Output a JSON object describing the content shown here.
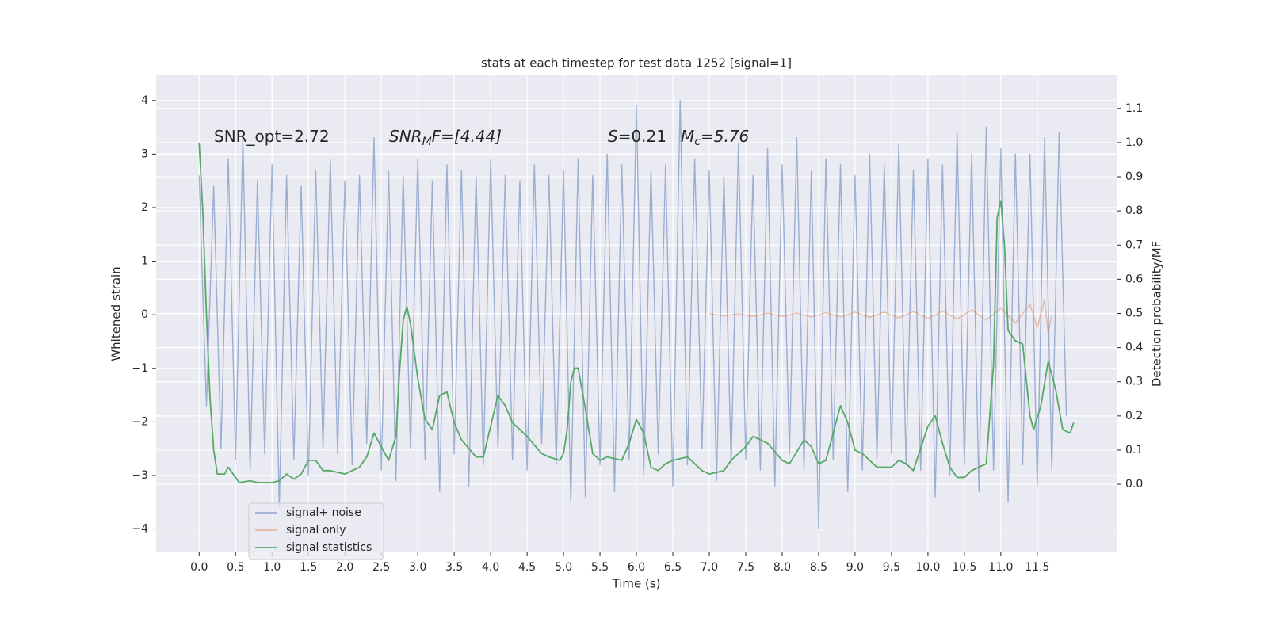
{
  "chart_data": {
    "type": "line",
    "title": "stats at each timestep for test data 1252 [signal=1]",
    "xlabel": "Time (s)",
    "ylabel": "Whitened strain",
    "y2label": "Detection probability/MF",
    "annotations": [
      {
        "base": "SNR_opt=2.72"
      },
      {
        "base": "SNR",
        "sub": "M",
        "rest": "F=[4.44]"
      },
      {
        "base": "S",
        "rest": "=0.21"
      },
      {
        "base": "M",
        "sub": "c",
        "rest": "=5.76"
      }
    ],
    "xlim": [
      -0.59,
      12.6
    ],
    "ylim": [
      -4.42,
      4.47
    ],
    "y2lim": [
      -0.197,
      1.197
    ],
    "xticks": [
      {
        "value": 0,
        "label": "0.0"
      },
      0.5,
      {
        "value": 1,
        "label": "1.0"
      },
      1.5,
      {
        "value": 2,
        "label": "2.0"
      },
      2.5,
      {
        "value": 3,
        "label": "3.0"
      },
      3.5,
      {
        "value": 4,
        "label": "4.0"
      },
      4.5,
      {
        "value": 5,
        "label": "5.0"
      },
      5.5,
      {
        "value": 6,
        "label": "6.0"
      },
      6.5,
      {
        "value": 7,
        "label": "7.0"
      },
      7.5,
      {
        "value": 8,
        "label": "8.0"
      },
      8.5,
      {
        "value": 9,
        "label": "9.0"
      },
      9.5,
      {
        "value": 10,
        "label": "10.0"
      },
      10.5,
      {
        "value": 11,
        "label": "11.0"
      },
      11.5
    ],
    "yticks": [
      {
        "value": -4,
        "label": "−4"
      },
      {
        "value": -3,
        "label": "−3"
      },
      {
        "value": -2,
        "label": "−2"
      },
      {
        "value": -1,
        "label": "−1"
      },
      0,
      1,
      2,
      3,
      4
    ],
    "y2ticks": [
      {
        "value": 0,
        "label": "0.0"
      },
      0.1,
      0.2,
      0.3,
      0.4,
      0.5,
      0.6,
      0.7,
      0.8,
      0.9,
      {
        "value": 1,
        "label": "1.0"
      },
      1.1
    ],
    "grid": true,
    "legend": "lower left",
    "series": [
      {
        "name": "signal+ noise",
        "color": "#4c72b0",
        "alpha": 0.5,
        "axis": "y",
        "x": [
          0.0,
          0.1,
          0.2,
          0.3,
          0.4,
          0.5,
          0.6,
          0.7,
          0.8,
          0.9,
          1.0,
          1.1,
          1.2,
          1.3,
          1.4,
          1.5,
          1.6,
          1.7,
          1.8,
          1.9,
          2.0,
          2.1,
          2.2,
          2.3,
          2.4,
          2.5,
          2.6,
          2.7,
          2.8,
          2.9,
          3.0,
          3.1,
          3.2,
          3.3,
          3.4,
          3.5,
          3.6,
          3.7,
          3.8,
          3.9,
          4.0,
          4.1,
          4.2,
          4.3,
          4.4,
          4.5,
          4.6,
          4.7,
          4.8,
          4.9,
          5.0,
          5.1,
          5.2,
          5.3,
          5.4,
          5.5,
          5.6,
          5.7,
          5.8,
          5.9,
          6.0,
          6.1,
          6.2,
          6.3,
          6.4,
          6.5,
          6.6,
          6.7,
          6.8,
          6.9,
          7.0,
          7.1,
          7.2,
          7.3,
          7.4,
          7.5,
          7.6,
          7.7,
          7.8,
          7.9,
          8.0,
          8.1,
          8.2,
          8.3,
          8.4,
          8.5,
          8.6,
          8.7,
          8.8,
          8.9,
          9.0,
          9.1,
          9.2,
          9.3,
          9.4,
          9.5,
          9.6,
          9.7,
          9.8,
          9.9,
          10.0,
          10.1,
          10.2,
          10.3,
          10.4,
          10.5,
          10.6,
          10.7,
          10.8,
          10.9,
          11.0,
          11.1,
          11.2,
          11.3,
          11.4,
          11.5,
          11.6,
          11.7,
          11.8,
          11.9
        ],
        "values": [
          2.6,
          -1.7,
          2.4,
          -2.5,
          2.9,
          -2.7,
          3.3,
          -2.9,
          2.5,
          -2.6,
          2.8,
          -3.6,
          2.6,
          -2.7,
          2.4,
          -3.0,
          2.7,
          -2.5,
          2.9,
          -2.6,
          2.5,
          -2.8,
          2.6,
          -2.4,
          3.3,
          -2.9,
          2.7,
          -3.1,
          2.6,
          -2.5,
          2.9,
          -2.7,
          2.5,
          -3.3,
          2.8,
          -2.6,
          2.7,
          -3.2,
          2.6,
          -2.8,
          2.9,
          -2.5,
          2.6,
          -2.7,
          2.5,
          -2.9,
          2.8,
          -2.4,
          2.6,
          -2.8,
          2.7,
          -3.5,
          2.9,
          -3.4,
          2.6,
          -2.8,
          3.0,
          -3.3,
          2.8,
          -2.7,
          3.9,
          -3.0,
          2.7,
          -2.6,
          2.8,
          -3.2,
          4.0,
          -2.8,
          2.9,
          -2.5,
          2.7,
          -3.1,
          2.6,
          -2.8,
          3.2,
          -2.7,
          2.6,
          -2.9,
          3.1,
          -3.2,
          2.8,
          -2.6,
          3.3,
          -2.9,
          2.7,
          -4.0,
          2.9,
          -2.7,
          2.8,
          -3.3,
          2.6,
          -2.9,
          3.0,
          -2.7,
          2.8,
          -2.6,
          3.2,
          -2.8,
          2.7,
          -2.9,
          2.9,
          -3.4,
          2.8,
          -3.0,
          3.4,
          -2.8,
          3.0,
          -3.3,
          3.5,
          -2.9,
          3.1,
          -3.5,
          3.0,
          -2.8,
          3.0,
          -3.2,
          3.3,
          -2.9,
          3.4,
          -1.9
        ]
      },
      {
        "name": "signal only",
        "color": "#dd8452",
        "alpha": 0.5,
        "axis": "y",
        "x": [
          7.0,
          7.2,
          7.4,
          7.6,
          7.8,
          8.0,
          8.2,
          8.4,
          8.6,
          8.8,
          9.0,
          9.2,
          9.4,
          9.6,
          9.8,
          10.0,
          10.2,
          10.4,
          10.6,
          10.8,
          11.0,
          11.2,
          11.4,
          11.5,
          11.6,
          11.65,
          11.7
        ],
        "values": [
          0.02,
          -0.02,
          0.02,
          -0.03,
          0.03,
          -0.03,
          0.03,
          -0.04,
          0.04,
          -0.04,
          0.05,
          -0.05,
          0.05,
          -0.06,
          0.06,
          -0.07,
          0.07,
          -0.08,
          0.09,
          -0.1,
          0.12,
          -0.15,
          0.19,
          -0.24,
          0.28,
          -0.35,
          0.0
        ]
      },
      {
        "name": "signal statistics",
        "color": "#55a868",
        "alpha": 1,
        "axis": "y2",
        "x": [
          0.0,
          0.05,
          0.1,
          0.15,
          0.2,
          0.25,
          0.35,
          0.4,
          0.5,
          0.55,
          0.7,
          0.8,
          1.0,
          1.1,
          1.2,
          1.3,
          1.4,
          1.5,
          1.6,
          1.7,
          1.8,
          2.0,
          2.1,
          2.2,
          2.3,
          2.4,
          2.5,
          2.6,
          2.7,
          2.75,
          2.8,
          2.85,
          2.9,
          3.0,
          3.1,
          3.2,
          3.3,
          3.4,
          3.5,
          3.6,
          3.8,
          3.9,
          4.0,
          4.1,
          4.2,
          4.3,
          4.5,
          4.7,
          4.8,
          4.95,
          5.0,
          5.05,
          5.1,
          5.15,
          5.2,
          5.3,
          5.4,
          5.5,
          5.6,
          5.8,
          5.9,
          6.0,
          6.1,
          6.2,
          6.3,
          6.4,
          6.5,
          6.7,
          6.9,
          7.0,
          7.2,
          7.3,
          7.5,
          7.6,
          7.8,
          8.0,
          8.1,
          8.3,
          8.4,
          8.5,
          8.6,
          8.7,
          8.8,
          8.9,
          9.0,
          9.1,
          9.3,
          9.5,
          9.6,
          9.7,
          9.8,
          10.0,
          10.1,
          10.2,
          10.3,
          10.4,
          10.5,
          10.6,
          10.8,
          10.9,
          10.95,
          11.0,
          11.05,
          11.1,
          11.2,
          11.3,
          11.4,
          11.45,
          11.55,
          11.65,
          11.75,
          11.85,
          11.95,
          12.0
        ],
        "values": [
          1.0,
          0.8,
          0.5,
          0.25,
          0.1,
          0.03,
          0.03,
          0.05,
          0.02,
          0.005,
          0.01,
          0.005,
          0.005,
          0.01,
          0.03,
          0.015,
          0.03,
          0.07,
          0.07,
          0.04,
          0.04,
          0.03,
          0.04,
          0.05,
          0.08,
          0.15,
          0.11,
          0.07,
          0.14,
          0.33,
          0.48,
          0.52,
          0.47,
          0.31,
          0.19,
          0.16,
          0.26,
          0.27,
          0.18,
          0.13,
          0.08,
          0.08,
          0.17,
          0.26,
          0.23,
          0.18,
          0.14,
          0.09,
          0.08,
          0.07,
          0.09,
          0.16,
          0.3,
          0.34,
          0.34,
          0.22,
          0.09,
          0.07,
          0.08,
          0.07,
          0.12,
          0.19,
          0.15,
          0.05,
          0.04,
          0.06,
          0.07,
          0.08,
          0.04,
          0.03,
          0.04,
          0.07,
          0.11,
          0.14,
          0.12,
          0.07,
          0.06,
          0.13,
          0.11,
          0.06,
          0.07,
          0.15,
          0.23,
          0.18,
          0.1,
          0.09,
          0.05,
          0.05,
          0.07,
          0.06,
          0.04,
          0.17,
          0.2,
          0.12,
          0.05,
          0.02,
          0.02,
          0.04,
          0.06,
          0.35,
          0.78,
          0.83,
          0.7,
          0.45,
          0.42,
          0.41,
          0.2,
          0.16,
          0.23,
          0.36,
          0.28,
          0.16,
          0.15,
          0.18
        ]
      }
    ]
  }
}
